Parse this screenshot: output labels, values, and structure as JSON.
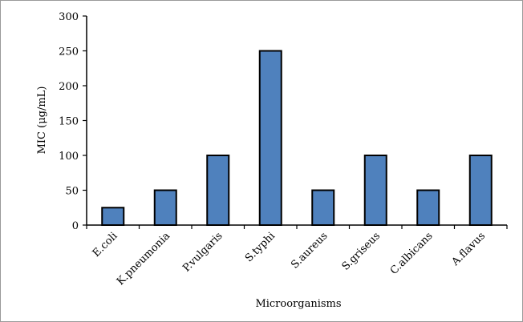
{
  "chart_data": {
    "type": "bar",
    "title": "",
    "xlabel": "Microorganisms",
    "ylabel": "MIC (μg/mL)",
    "ylim": [
      0,
      300
    ],
    "yticks": [
      0,
      50,
      100,
      150,
      200,
      250,
      300
    ],
    "categories": [
      "E.coli",
      "K.pneumonia",
      "P.vulgaris",
      "S.typhi",
      "S.aureus",
      "S.griseus",
      "C.albicans",
      "A.flavus"
    ],
    "values": [
      25,
      50,
      100,
      250,
      50,
      100,
      50,
      100
    ],
    "bar_color": "#4f81bd",
    "bar_edge_color": "#000000",
    "grid": false,
    "legend": "none"
  }
}
